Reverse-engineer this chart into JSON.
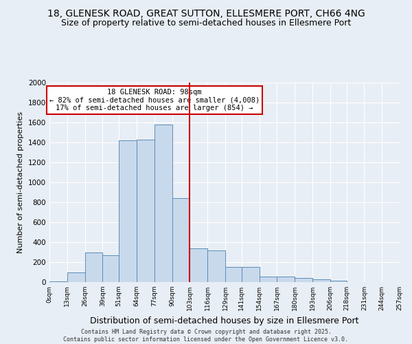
{
  "title1": "18, GLENESK ROAD, GREAT SUTTON, ELLESMERE PORT, CH66 4NG",
  "title2": "Size of property relative to semi-detached houses in Ellesmere Port",
  "xlabel": "Distribution of semi-detached houses by size in Ellesmere Port",
  "ylabel": "Number of semi-detached properties",
  "bin_labels": [
    "0sqm",
    "13sqm",
    "26sqm",
    "39sqm",
    "51sqm",
    "64sqm",
    "77sqm",
    "90sqm",
    "103sqm",
    "116sqm",
    "129sqm",
    "141sqm",
    "154sqm",
    "167sqm",
    "180sqm",
    "193sqm",
    "206sqm",
    "218sqm",
    "231sqm",
    "244sqm",
    "257sqm"
  ],
  "bin_edges": [
    0,
    13,
    26,
    39,
    51,
    64,
    77,
    90,
    103,
    116,
    129,
    141,
    154,
    167,
    180,
    193,
    206,
    218,
    231,
    244,
    257
  ],
  "bar_values": [
    10,
    100,
    300,
    270,
    1420,
    1430,
    1580,
    840,
    340,
    320,
    155,
    155,
    55,
    55,
    40,
    25,
    15,
    0,
    0,
    0
  ],
  "bar_color": "#c9d9ec",
  "bar_edge_color": "#5b8db8",
  "vline_x": 103,
  "vline_color": "#cc0000",
  "annotation_title": "18 GLENESK ROAD: 98sqm",
  "annotation_line1": "← 82% of semi-detached houses are smaller (4,008)",
  "annotation_line2": "17% of semi-detached houses are larger (854) →",
  "annotation_box_color": "#ffffff",
  "annotation_box_edge": "#cc0000",
  "ylim": [
    0,
    2000
  ],
  "yticks": [
    0,
    200,
    400,
    600,
    800,
    1000,
    1200,
    1400,
    1600,
    1800,
    2000
  ],
  "bg_color": "#e8eef5",
  "footer1": "Contains HM Land Registry data © Crown copyright and database right 2025.",
  "footer2": "Contains public sector information licensed under the Open Government Licence v3.0.",
  "grid_color": "#ffffff",
  "title1_fontsize": 10,
  "title2_fontsize": 9,
  "ylabel_fontsize": 8,
  "xlabel_fontsize": 9
}
